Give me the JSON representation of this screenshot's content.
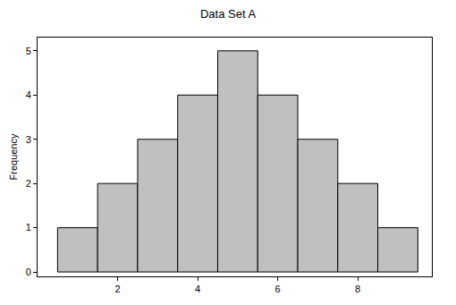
{
  "chart_data": {
    "type": "histogram",
    "title": "Data Set A",
    "y_label": "Frequency",
    "bins": [
      0.5,
      1.5,
      2.5,
      3.5,
      4.5,
      5.5,
      6.5,
      7.5,
      8.5,
      9.5
    ],
    "values": [
      1,
      2,
      3,
      4,
      5,
      4,
      3,
      2,
      1
    ],
    "color": "#c0c0c0",
    "xlim": [
      0,
      9.85
    ],
    "xticks": [
      2,
      4,
      6,
      8
    ],
    "ylim": [
      -0.1,
      5.3
    ],
    "yticks": [
      0,
      1,
      2,
      3,
      4,
      5
    ],
    "grid": false
  }
}
